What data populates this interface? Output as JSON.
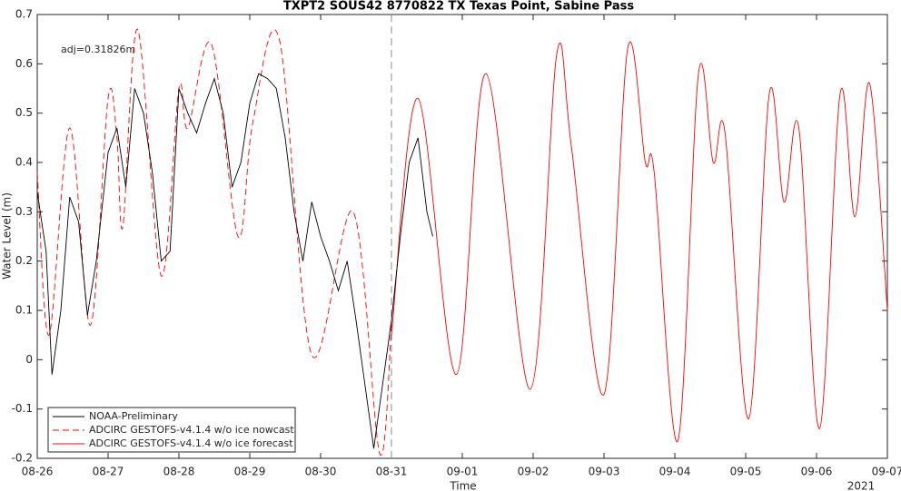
{
  "chart_data": {
    "type": "line",
    "title": "TXPT2 SOUS42 8770822 TX Texas Point, Sabine Pass",
    "x_label": "Time",
    "y_label": "Water Level (m)",
    "x_year_label": "2021",
    "annotation": "adj=0.31826m",
    "xlim": [
      "2021-08-26 00:00",
      "2021-09-07 00:00"
    ],
    "xticks": [
      {
        "value": "2021-08-26 00:00",
        "label": "08-26"
      },
      {
        "value": "2021-08-27 00:00",
        "label": "08-27"
      },
      {
        "value": "2021-08-28 00:00",
        "label": "08-28"
      },
      {
        "value": "2021-08-29 00:00",
        "label": "08-29"
      },
      {
        "value": "2021-08-30 00:00",
        "label": "08-30"
      },
      {
        "value": "2021-08-31 00:00",
        "label": "08-31"
      },
      {
        "value": "2021-09-01 00:00",
        "label": "09-01"
      },
      {
        "value": "2021-09-02 00:00",
        "label": "09-02"
      },
      {
        "value": "2021-09-03 00:00",
        "label": "09-03"
      },
      {
        "value": "2021-09-04 00:00",
        "label": "09-04"
      },
      {
        "value": "2021-09-05 00:00",
        "label": "09-05"
      },
      {
        "value": "2021-09-06 00:00",
        "label": "09-06"
      },
      {
        "value": "2021-09-07 00:00",
        "label": "09-07"
      }
    ],
    "ylim": [
      -0.2,
      0.7
    ],
    "yticks": [
      -0.2,
      -0.1,
      0,
      0.1,
      0.2,
      0.3,
      0.4,
      0.5,
      0.6,
      0.7
    ],
    "grid": false,
    "legend": "lower left",
    "series": [
      {
        "name": "NOAA-Preliminary",
        "color": "#000000",
        "style": "solid",
        "x": [
          "2021-08-26 00:00",
          "2021-08-26 03:00",
          "2021-08-26 05:00",
          "2021-08-26 08:00",
          "2021-08-26 11:00",
          "2021-08-26 14:00",
          "2021-08-26 17:00",
          "2021-08-26 20:00",
          "2021-08-27 00:00",
          "2021-08-27 03:00",
          "2021-08-27 06:00",
          "2021-08-27 09:00",
          "2021-08-27 12:00",
          "2021-08-27 15:00",
          "2021-08-27 18:00",
          "2021-08-27 21:00",
          "2021-08-28 00:00",
          "2021-08-28 03:00",
          "2021-08-28 06:00",
          "2021-08-28 09:00",
          "2021-08-28 12:00",
          "2021-08-28 15:00",
          "2021-08-28 18:00",
          "2021-08-28 21:00",
          "2021-08-29 00:00",
          "2021-08-29 03:00",
          "2021-08-29 06:00",
          "2021-08-29 09:00",
          "2021-08-29 12:00",
          "2021-08-29 15:00",
          "2021-08-29 18:00",
          "2021-08-29 21:00",
          "2021-08-30 00:00",
          "2021-08-30 03:00",
          "2021-08-30 06:00",
          "2021-08-30 09:00",
          "2021-08-30 12:00",
          "2021-08-30 15:00",
          "2021-08-30 18:00",
          "2021-08-30 21:00",
          "2021-08-31 00:00",
          "2021-08-31 03:00",
          "2021-08-31 06:00",
          "2021-08-31 09:00",
          "2021-08-31 12:00",
          "2021-08-31 14:00"
        ],
        "values": [
          0.34,
          0.22,
          -0.03,
          0.1,
          0.33,
          0.28,
          0.09,
          0.2,
          0.42,
          0.47,
          0.35,
          0.55,
          0.5,
          0.38,
          0.2,
          0.22,
          0.55,
          0.5,
          0.46,
          0.52,
          0.57,
          0.5,
          0.35,
          0.4,
          0.52,
          0.58,
          0.57,
          0.55,
          0.45,
          0.3,
          0.2,
          0.32,
          0.25,
          0.2,
          0.14,
          0.2,
          0.08,
          -0.05,
          -0.18,
          -0.05,
          0.08,
          0.25,
          0.4,
          0.45,
          0.3,
          0.25
        ]
      },
      {
        "name": "ADCIRC GESTOFS-v4.1.4 w/o ice nowcast",
        "color": "#ff0000",
        "style": "dashed",
        "x": [
          "2021-08-26 00:00",
          "2021-08-26 04:00",
          "2021-08-26 11:00",
          "2021-08-26 18:00",
          "2021-08-27 00:00",
          "2021-08-27 03:00",
          "2021-08-27 05:00",
          "2021-08-27 10:00",
          "2021-08-27 18:00",
          "2021-08-28 00:00",
          "2021-08-28 03:00",
          "2021-08-28 11:00",
          "2021-08-28 20:00",
          "2021-08-29 01:00",
          "2021-08-29 10:00",
          "2021-08-29 21:00",
          "2021-08-30 11:00",
          "2021-08-30 20:00",
          "2021-08-31 00:00"
        ],
        "values": [
          0.38,
          0.05,
          0.47,
          0.07,
          0.53,
          0.45,
          0.27,
          0.67,
          0.17,
          0.55,
          0.47,
          0.64,
          0.25,
          0.48,
          0.65,
          0.01,
          0.3,
          -0.19,
          0.07
        ]
      },
      {
        "name": "ADCIRC GESTOFS-v4.1.4 w/o ice forecast",
        "color": "#ff0000",
        "style": "solid",
        "x": [
          "2021-08-31 00:00",
          "2021-08-31 09:00",
          "2021-08-31 22:00",
          "2021-09-01 08:00",
          "2021-09-01 23:00",
          "2021-09-02 08:00",
          "2021-09-02 13:00",
          "2021-09-03 00:00",
          "2021-09-03 08:00",
          "2021-09-03 14:00",
          "2021-09-03 17:00",
          "2021-09-04 01:00",
          "2021-09-04 08:00",
          "2021-09-04 13:00",
          "2021-09-04 17:00",
          "2021-09-05 01:00",
          "2021-09-05 08:00",
          "2021-09-05 13:00",
          "2021-09-05 18:00",
          "2021-09-06 01:00",
          "2021-09-06 08:00",
          "2021-09-06 13:00",
          "2021-09-06 18:00",
          "2021-09-07 00:00"
        ],
        "values": [
          0.05,
          0.53,
          -0.03,
          0.58,
          -0.06,
          0.62,
          0.43,
          -0.07,
          0.63,
          0.4,
          0.38,
          -0.165,
          0.58,
          0.4,
          0.46,
          -0.12,
          0.54,
          0.32,
          0.47,
          -0.14,
          0.54,
          0.29,
          0.56,
          0.1
        ]
      }
    ]
  }
}
